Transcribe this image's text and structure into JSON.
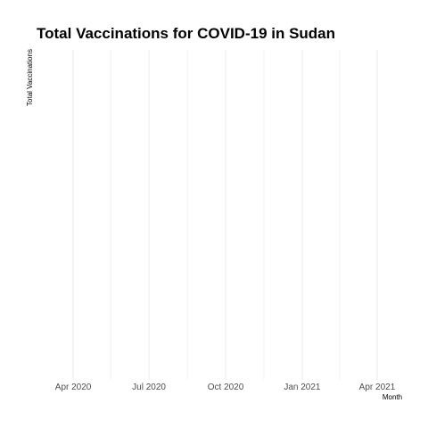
{
  "chart_data": {
    "type": "line",
    "title": "Total Vaccinations for COVID-19 in Sudan",
    "xlabel": "Month",
    "ylabel": "Total Vaccinations",
    "x_ticks": [
      {
        "date": "2020-04-01",
        "label": "Apr 2020"
      },
      {
        "date": "2020-07-01",
        "label": "Jul 2020"
      },
      {
        "date": "2020-10-01",
        "label": "Oct 2020"
      },
      {
        "date": "2021-01-01",
        "label": "Jan 2021"
      },
      {
        "date": "2021-04-01",
        "label": "Apr 2021"
      }
    ],
    "xlim": [
      "2020-02-17",
      "2021-05-16"
    ],
    "series": [],
    "grid": true,
    "legend": "none",
    "colors": {
      "grid": "#ebebeb",
      "tick_text": "#4d4d4d",
      "title_text": "#000000"
    }
  }
}
